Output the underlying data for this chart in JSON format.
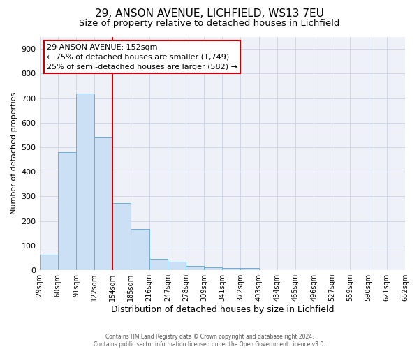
{
  "title_line1": "29, ANSON AVENUE, LICHFIELD, WS13 7EU",
  "title_line2": "Size of property relative to detached houses in Lichfield",
  "xlabel": "Distribution of detached houses by size in Lichfield",
  "ylabel": "Number of detached properties",
  "bin_labels": [
    "29sqm",
    "60sqm",
    "91sqm",
    "122sqm",
    "154sqm",
    "185sqm",
    "216sqm",
    "247sqm",
    "278sqm",
    "309sqm",
    "341sqm",
    "372sqm",
    "403sqm",
    "434sqm",
    "465sqm",
    "496sqm",
    "527sqm",
    "559sqm",
    "590sqm",
    "621sqm",
    "652sqm"
  ],
  "bar_heights": [
    62,
    480,
    720,
    543,
    272,
    168,
    47,
    35,
    17,
    13,
    10,
    10,
    0,
    0,
    0,
    0,
    0,
    0,
    0,
    0
  ],
  "bar_color": "#cce0f5",
  "bar_edge_color": "#6aaed6",
  "vline_x": 4,
  "vline_color": "#cc0000",
  "ylim": [
    0,
    950
  ],
  "yticks": [
    0,
    100,
    200,
    300,
    400,
    500,
    600,
    700,
    800,
    900
  ],
  "annotation_text": "29 ANSON AVENUE: 152sqm\n← 75% of detached houses are smaller (1,749)\n25% of semi-detached houses are larger (582) →",
  "annotation_box_color": "#ffffff",
  "annotation_box_edge_color": "#cc0000",
  "grid_color": "#d0d8e8",
  "bg_color": "#eef2f8",
  "footer_text": "Contains HM Land Registry data © Crown copyright and database right 2024.\nContains public sector information licensed under the Open Government Licence v3.0.",
  "title_fontsize": 11,
  "subtitle_fontsize": 9.5,
  "fig_width": 6.0,
  "fig_height": 5.0
}
